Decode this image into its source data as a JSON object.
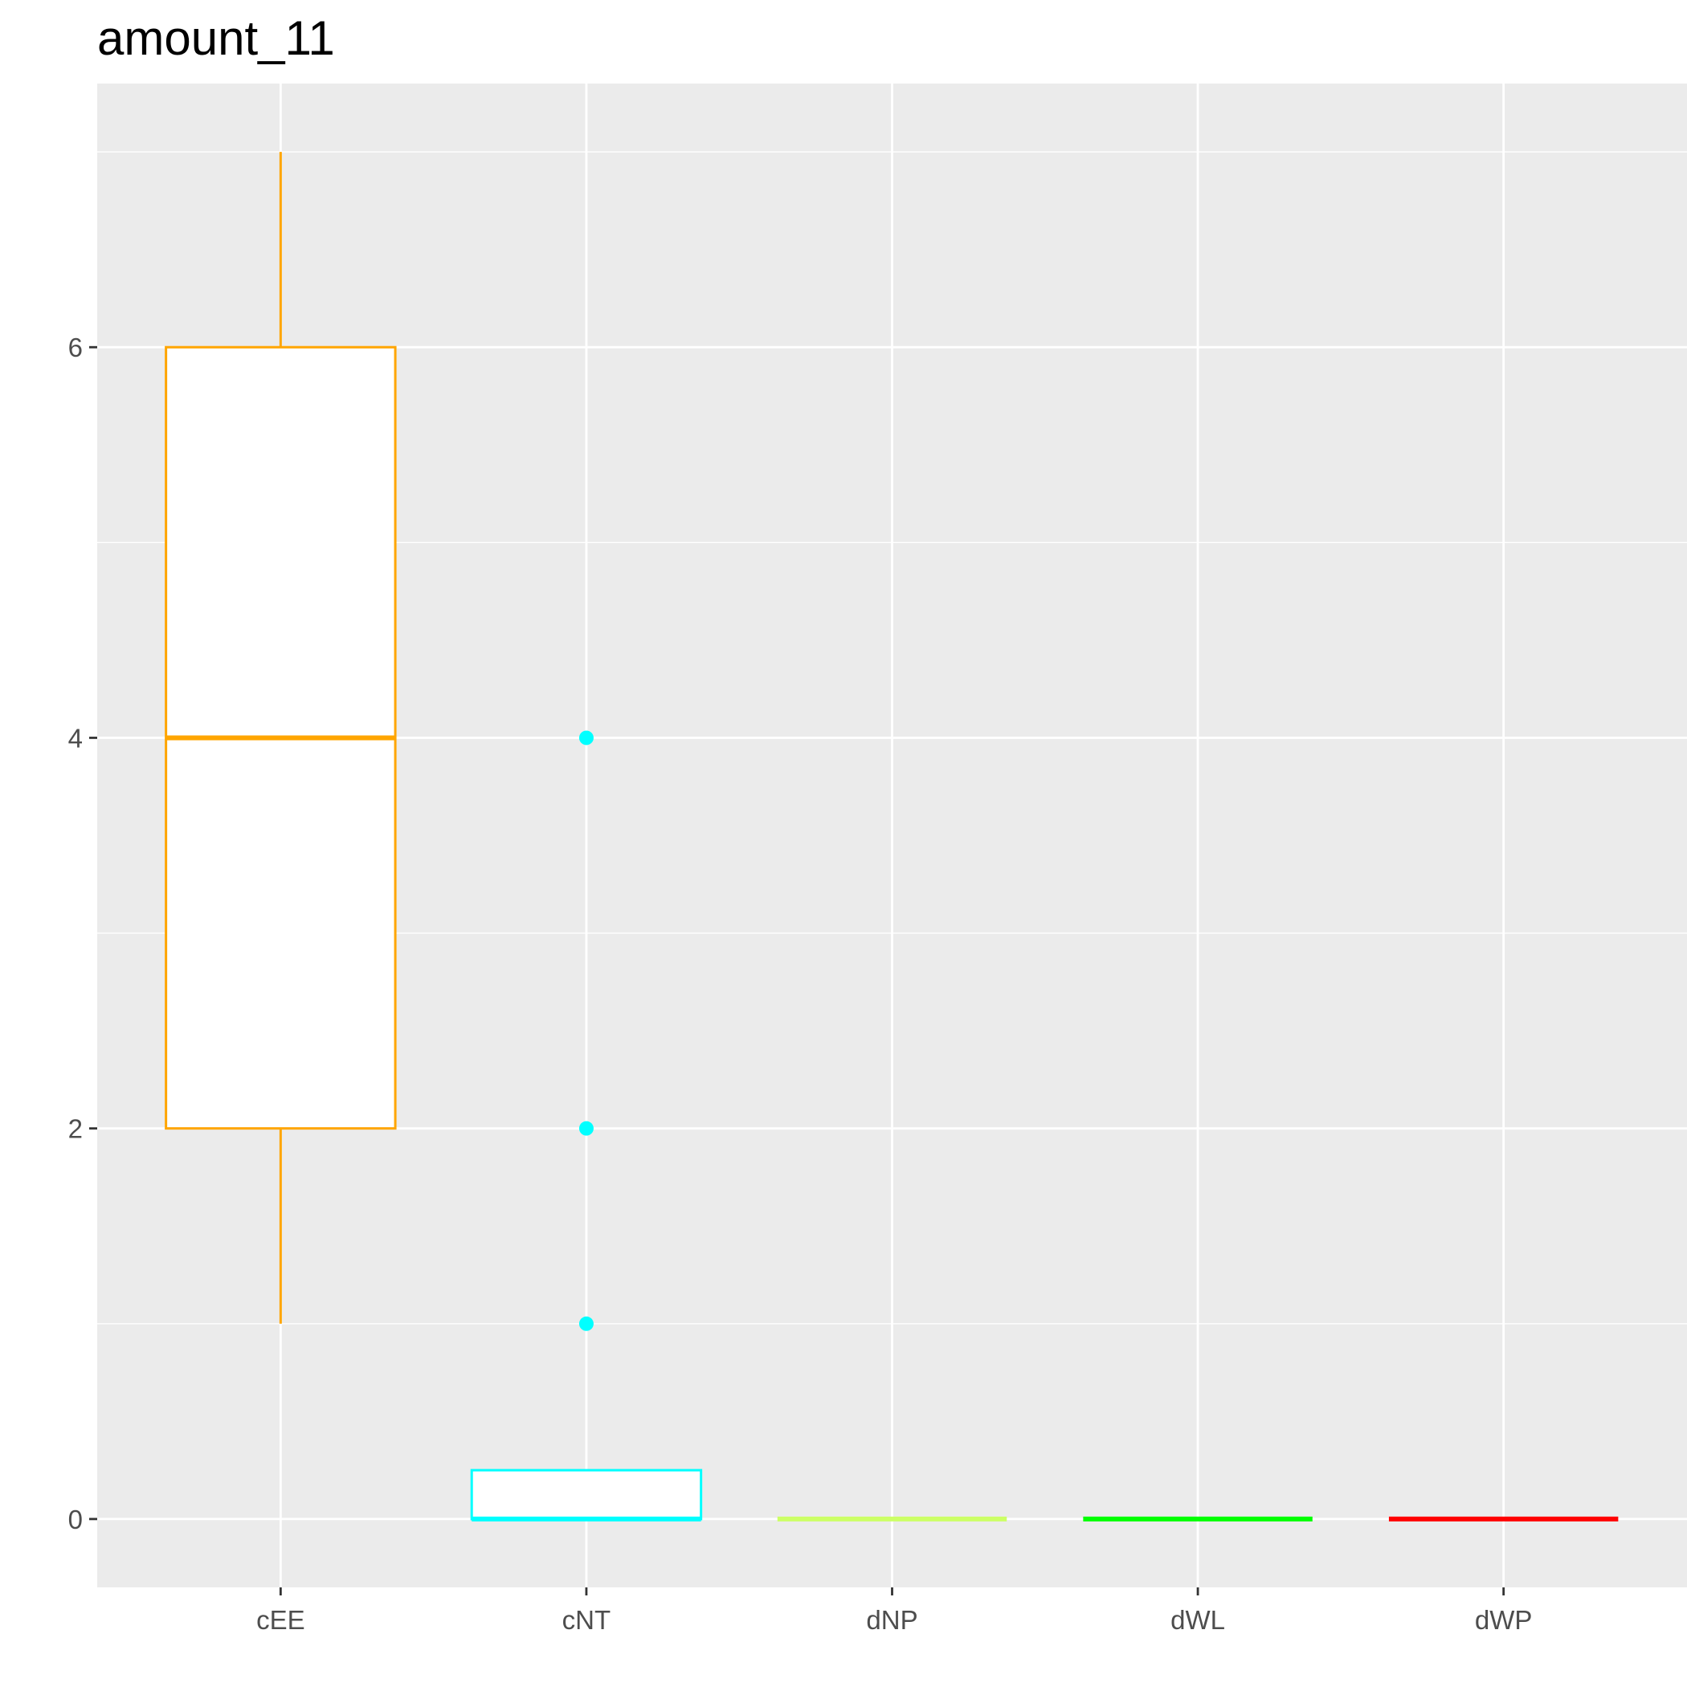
{
  "chart_data": {
    "type": "boxplot",
    "title": "amount_11",
    "xlabel": "",
    "ylabel": "",
    "ylim": [
      -0.35,
      7.35
    ],
    "yticks": [
      0,
      2,
      4,
      6
    ],
    "grid": true,
    "legend": "none",
    "background": "#ebebeb",
    "categories": [
      "cEE",
      "cNT",
      "dNP",
      "dWL",
      "dWP"
    ],
    "boxes": [
      {
        "category": "cEE",
        "color": "#ffa500",
        "whisker_low": 1,
        "q1": 2,
        "median": 4,
        "q3": 6,
        "whisker_high": 7,
        "outliers": []
      },
      {
        "category": "cNT",
        "color": "#00ffff",
        "whisker_low": 0,
        "q1": 0,
        "median": 0,
        "q3": 0.25,
        "whisker_high": 0.25,
        "outliers": [
          1,
          2,
          4
        ]
      },
      {
        "category": "dNP",
        "color": "#ccff66",
        "whisker_low": 0,
        "q1": 0,
        "median": 0,
        "q3": 0,
        "whisker_high": 0,
        "outliers": []
      },
      {
        "category": "dWL",
        "color": "#00ff00",
        "whisker_low": 0,
        "q1": 0,
        "median": 0,
        "q3": 0,
        "whisker_high": 0,
        "outliers": []
      },
      {
        "category": "dWP",
        "color": "#ff0000",
        "whisker_low": 0,
        "q1": 0,
        "median": 0,
        "q3": 0,
        "whisker_high": 0,
        "outliers": []
      }
    ]
  }
}
